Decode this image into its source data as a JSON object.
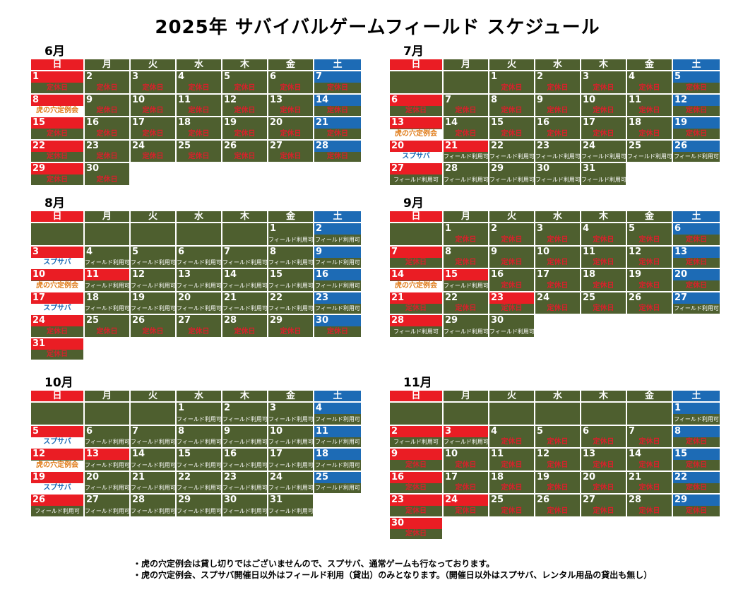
{
  "title": "2025年 サバイバルゲームフィールド スケジュール",
  "weekdays": [
    "日",
    "月",
    "火",
    "水",
    "木",
    "金",
    "土"
  ],
  "colors": {
    "sunday": "#ea1d24",
    "monday_to_friday_header": "#4e5f2f",
    "saturday": "#1d6bb5",
    "closed_text": "#d9202b",
    "event_blue": "#1d6bb5",
    "event_orange": "#e07b18"
  },
  "labels": {
    "closed": "定休日",
    "open": "フィールド利用可",
    "spsaba": "スプサバ",
    "tora": "虎の穴定例会"
  },
  "months": [
    {
      "name": "6月",
      "weeks": [
        [
          {
            "d": "1",
            "s": "closed"
          },
          {
            "d": "2",
            "s": "closed"
          },
          {
            "d": "3",
            "s": "closed"
          },
          {
            "d": "4",
            "s": "closed"
          },
          {
            "d": "5",
            "s": "closed"
          },
          {
            "d": "6",
            "s": "closed"
          },
          {
            "d": "7",
            "s": "closed"
          }
        ],
        [
          {
            "d": "8",
            "s": "tora"
          },
          {
            "d": "9",
            "s": "closed"
          },
          {
            "d": "10",
            "s": "closed"
          },
          {
            "d": "11",
            "s": "closed"
          },
          {
            "d": "12",
            "s": "closed"
          },
          {
            "d": "13",
            "s": "closed"
          },
          {
            "d": "14",
            "s": "closed"
          }
        ],
        [
          {
            "d": "15",
            "s": "closed"
          },
          {
            "d": "16",
            "s": "closed"
          },
          {
            "d": "17",
            "s": "closed"
          },
          {
            "d": "18",
            "s": "closed"
          },
          {
            "d": "19",
            "s": "closed"
          },
          {
            "d": "20",
            "s": "closed"
          },
          {
            "d": "21",
            "s": "closed"
          }
        ],
        [
          {
            "d": "22",
            "s": "closed"
          },
          {
            "d": "23",
            "s": "closed"
          },
          {
            "d": "24",
            "s": "closed"
          },
          {
            "d": "25",
            "s": "closed"
          },
          {
            "d": "26",
            "s": "closed"
          },
          {
            "d": "27",
            "s": "closed"
          },
          {
            "d": "28",
            "s": "closed"
          }
        ],
        [
          {
            "d": "29",
            "s": "closed"
          },
          {
            "d": "30",
            "s": "closed"
          },
          {
            "t": "blank"
          },
          {
            "t": "blank"
          },
          {
            "t": "blank"
          },
          {
            "t": "blank"
          },
          {
            "t": "blank"
          }
        ]
      ]
    },
    {
      "name": "7月",
      "weeks": [
        [
          {
            "t": "empty"
          },
          {
            "t": "empty"
          },
          {
            "d": "1",
            "s": "closed"
          },
          {
            "d": "2",
            "s": "closed"
          },
          {
            "d": "3",
            "s": "closed"
          },
          {
            "d": "4",
            "s": "closed"
          },
          {
            "d": "5",
            "s": "closed"
          }
        ],
        [
          {
            "d": "6",
            "s": "closed"
          },
          {
            "d": "7",
            "s": "closed"
          },
          {
            "d": "8",
            "s": "closed"
          },
          {
            "d": "9",
            "s": "closed"
          },
          {
            "d": "10",
            "s": "closed"
          },
          {
            "d": "11",
            "s": "closed"
          },
          {
            "d": "12",
            "s": "closed"
          }
        ],
        [
          {
            "d": "13",
            "s": "tora"
          },
          {
            "d": "14",
            "s": "closed"
          },
          {
            "d": "15",
            "s": "closed"
          },
          {
            "d": "16",
            "s": "closed"
          },
          {
            "d": "17",
            "s": "closed"
          },
          {
            "d": "18",
            "s": "closed"
          },
          {
            "d": "19",
            "s": "closed"
          }
        ],
        [
          {
            "d": "20",
            "s": "spsaba"
          },
          {
            "d": "21",
            "s": "open",
            "red": true
          },
          {
            "d": "22",
            "s": "open"
          },
          {
            "d": "23",
            "s": "open"
          },
          {
            "d": "24",
            "s": "open"
          },
          {
            "d": "25",
            "s": "open"
          },
          {
            "d": "26",
            "s": "open"
          }
        ],
        [
          {
            "d": "27",
            "s": "open"
          },
          {
            "d": "28",
            "s": "open"
          },
          {
            "d": "29",
            "s": "open"
          },
          {
            "d": "30",
            "s": "open"
          },
          {
            "d": "31",
            "s": "open"
          },
          {
            "t": "blank"
          },
          {
            "t": "blank"
          }
        ]
      ]
    },
    {
      "name": "8月",
      "weeks": [
        [
          {
            "t": "empty"
          },
          {
            "t": "empty"
          },
          {
            "t": "empty"
          },
          {
            "t": "empty"
          },
          {
            "t": "empty"
          },
          {
            "d": "1",
            "s": "open"
          },
          {
            "d": "2",
            "s": "open"
          }
        ],
        [
          {
            "d": "3",
            "s": "spsaba"
          },
          {
            "d": "4",
            "s": "open"
          },
          {
            "d": "5",
            "s": "open"
          },
          {
            "d": "6",
            "s": "open"
          },
          {
            "d": "7",
            "s": "open"
          },
          {
            "d": "8",
            "s": "open"
          },
          {
            "d": "9",
            "s": "open"
          }
        ],
        [
          {
            "d": "10",
            "s": "tora"
          },
          {
            "d": "11",
            "s": "open",
            "red": true
          },
          {
            "d": "12",
            "s": "open"
          },
          {
            "d": "13",
            "s": "open"
          },
          {
            "d": "14",
            "s": "open"
          },
          {
            "d": "15",
            "s": "open"
          },
          {
            "d": "16",
            "s": "open"
          }
        ],
        [
          {
            "d": "17",
            "s": "spsaba"
          },
          {
            "d": "18",
            "s": "open"
          },
          {
            "d": "19",
            "s": "open"
          },
          {
            "d": "20",
            "s": "open"
          },
          {
            "d": "21",
            "s": "open"
          },
          {
            "d": "22",
            "s": "open"
          },
          {
            "d": "23",
            "s": "open"
          }
        ],
        [
          {
            "d": "24",
            "s": "closed"
          },
          {
            "d": "25",
            "s": "closed"
          },
          {
            "d": "26",
            "s": "closed"
          },
          {
            "d": "27",
            "s": "closed"
          },
          {
            "d": "28",
            "s": "closed"
          },
          {
            "d": "29",
            "s": "closed"
          },
          {
            "d": "30",
            "s": "closed"
          }
        ],
        [
          {
            "d": "31",
            "s": "closed"
          },
          {
            "t": "blank"
          },
          {
            "t": "blank"
          },
          {
            "t": "blank"
          },
          {
            "t": "blank"
          },
          {
            "t": "blank"
          },
          {
            "t": "blank"
          }
        ]
      ]
    },
    {
      "name": "9月",
      "weeks": [
        [
          {
            "t": "empty"
          },
          {
            "d": "1",
            "s": "closed"
          },
          {
            "d": "2",
            "s": "closed"
          },
          {
            "d": "3",
            "s": "closed"
          },
          {
            "d": "4",
            "s": "closed"
          },
          {
            "d": "5",
            "s": "closed"
          },
          {
            "d": "6",
            "s": "closed"
          }
        ],
        [
          {
            "d": "7",
            "s": "closed"
          },
          {
            "d": "8",
            "s": "closed"
          },
          {
            "d": "9",
            "s": "closed"
          },
          {
            "d": "10",
            "s": "closed"
          },
          {
            "d": "11",
            "s": "closed"
          },
          {
            "d": "12",
            "s": "closed"
          },
          {
            "d": "13",
            "s": "closed"
          }
        ],
        [
          {
            "d": "14",
            "s": "tora"
          },
          {
            "d": "15",
            "s": "open",
            "red": true
          },
          {
            "d": "16",
            "s": "closed"
          },
          {
            "d": "17",
            "s": "closed"
          },
          {
            "d": "18",
            "s": "closed"
          },
          {
            "d": "19",
            "s": "closed"
          },
          {
            "d": "20",
            "s": "closed"
          }
        ],
        [
          {
            "d": "21",
            "s": "closed"
          },
          {
            "d": "22",
            "s": "closed"
          },
          {
            "d": "23",
            "s": "closed",
            "red": true
          },
          {
            "d": "24",
            "s": "closed"
          },
          {
            "d": "25",
            "s": "closed"
          },
          {
            "d": "26",
            "s": "closed"
          },
          {
            "d": "27",
            "s": "open"
          }
        ],
        [
          {
            "d": "28",
            "s": "open"
          },
          {
            "d": "29",
            "s": "open"
          },
          {
            "d": "30",
            "s": "open"
          },
          {
            "t": "blank"
          },
          {
            "t": "blank"
          },
          {
            "t": "blank"
          },
          {
            "t": "blank"
          }
        ]
      ]
    },
    {
      "name": "10月",
      "weeks": [
        [
          {
            "t": "empty"
          },
          {
            "t": "empty"
          },
          {
            "t": "empty"
          },
          {
            "d": "1",
            "s": "open"
          },
          {
            "d": "2",
            "s": "open"
          },
          {
            "d": "3",
            "s": "open"
          },
          {
            "d": "4",
            "s": "open"
          }
        ],
        [
          {
            "d": "5",
            "s": "spsaba"
          },
          {
            "d": "6",
            "s": "open"
          },
          {
            "d": "7",
            "s": "open"
          },
          {
            "d": "8",
            "s": "open"
          },
          {
            "d": "9",
            "s": "open"
          },
          {
            "d": "10",
            "s": "open"
          },
          {
            "d": "11",
            "s": "open"
          }
        ],
        [
          {
            "d": "12",
            "s": "tora"
          },
          {
            "d": "13",
            "s": "open",
            "red": true
          },
          {
            "d": "14",
            "s": "open"
          },
          {
            "d": "15",
            "s": "open"
          },
          {
            "d": "16",
            "s": "open"
          },
          {
            "d": "17",
            "s": "open"
          },
          {
            "d": "18",
            "s": "open"
          }
        ],
        [
          {
            "d": "19",
            "s": "spsaba"
          },
          {
            "d": "20",
            "s": "open"
          },
          {
            "d": "21",
            "s": "open"
          },
          {
            "d": "22",
            "s": "open"
          },
          {
            "d": "23",
            "s": "open"
          },
          {
            "d": "24",
            "s": "open"
          },
          {
            "d": "25",
            "s": "open"
          }
        ],
        [
          {
            "d": "26",
            "s": "open"
          },
          {
            "d": "27",
            "s": "open"
          },
          {
            "d": "28",
            "s": "open"
          },
          {
            "d": "29",
            "s": "open"
          },
          {
            "d": "30",
            "s": "open"
          },
          {
            "d": "31",
            "s": "open"
          },
          {
            "t": "blank"
          }
        ]
      ]
    },
    {
      "name": "11月",
      "weeks": [
        [
          {
            "t": "empty"
          },
          {
            "t": "empty"
          },
          {
            "t": "empty"
          },
          {
            "t": "empty"
          },
          {
            "t": "empty"
          },
          {
            "t": "empty"
          },
          {
            "d": "1",
            "s": "open"
          }
        ],
        [
          {
            "d": "2",
            "s": "open"
          },
          {
            "d": "3",
            "s": "open",
            "red": true
          },
          {
            "d": "4",
            "s": "closed"
          },
          {
            "d": "5",
            "s": "closed"
          },
          {
            "d": "6",
            "s": "closed"
          },
          {
            "d": "7",
            "s": "closed"
          },
          {
            "d": "8",
            "s": "closed"
          }
        ],
        [
          {
            "d": "9",
            "s": "closed"
          },
          {
            "d": "10",
            "s": "closed"
          },
          {
            "d": "11",
            "s": "closed"
          },
          {
            "d": "12",
            "s": "closed"
          },
          {
            "d": "13",
            "s": "closed"
          },
          {
            "d": "14",
            "s": "closed"
          },
          {
            "d": "15",
            "s": "closed"
          }
        ],
        [
          {
            "d": "16",
            "s": "closed"
          },
          {
            "d": "17",
            "s": "closed"
          },
          {
            "d": "18",
            "s": "closed"
          },
          {
            "d": "19",
            "s": "closed"
          },
          {
            "d": "20",
            "s": "closed"
          },
          {
            "d": "21",
            "s": "closed"
          },
          {
            "d": "22",
            "s": "closed"
          }
        ],
        [
          {
            "d": "23",
            "s": "closed"
          },
          {
            "d": "24",
            "s": "closed",
            "red": true
          },
          {
            "d": "25",
            "s": "closed"
          },
          {
            "d": "26",
            "s": "closed"
          },
          {
            "d": "27",
            "s": "closed"
          },
          {
            "d": "28",
            "s": "closed"
          },
          {
            "d": "29",
            "s": "closed"
          }
        ],
        [
          {
            "d": "30",
            "s": "closed"
          },
          {
            "t": "blank"
          },
          {
            "t": "blank"
          },
          {
            "t": "blank"
          },
          {
            "t": "blank"
          },
          {
            "t": "blank"
          },
          {
            "t": "blank"
          }
        ]
      ]
    }
  ],
  "notes": [
    "・虎の穴定例会は貸し切りではございませんので、スプサバ、通常ゲームも行なっております。",
    "・虎の穴定例会、スプサバ開催日以外はフィールド利用（貸出）のみとなります。（開催日以外はスプサバ、レンタル用品の貸出も無し）"
  ]
}
